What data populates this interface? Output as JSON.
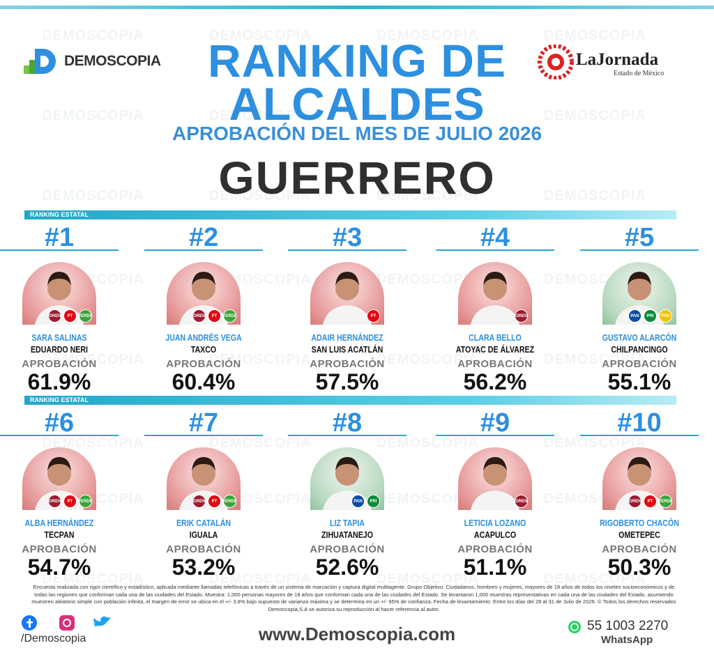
{
  "watermark": "DEMOSCOPIA",
  "header": {
    "brand": "DEMOSCOPIA",
    "title_line1": "RANKING DE",
    "title_line2": "ALCALDES",
    "subtitle": "APROBACIÓN DEL MES DE JULIO 2026",
    "state": "GUERRERO",
    "partner": "LaJornada",
    "partner_sub": "Estado de México"
  },
  "sections": [
    {
      "label": "RANKING ESTATAL",
      "cards": [
        {
          "rank": "#1",
          "name": "SARA SALINAS",
          "city": "EDUARDO NERI",
          "metric": "APROBACIÓN",
          "value": "61.9%",
          "photo": "red",
          "parties": [
            "MORENA",
            "PT",
            "VERDE"
          ]
        },
        {
          "rank": "#2",
          "name": "JUAN ANDRÉS VEGA",
          "city": "TAXCO",
          "metric": "APROBACIÓN",
          "value": "60.4%",
          "photo": "red",
          "parties": [
            "MORENA",
            "PT",
            "VERDE"
          ]
        },
        {
          "rank": "#3",
          "name": "ADAIR HERNÁNDEZ",
          "city": "SAN LUIS ACATLÁN",
          "metric": "APROBACIÓN",
          "value": "57.5%",
          "photo": "red",
          "parties": [
            "PT"
          ]
        },
        {
          "rank": "#4",
          "name": "CLARA BELLO",
          "city": "ATOYAC DE ÁLVAREZ",
          "metric": "APROBACIÓN",
          "value": "56.2%",
          "photo": "red",
          "parties": [
            "MORENA"
          ]
        },
        {
          "rank": "#5",
          "name": "GUSTAVO ALARCÓN",
          "city": "CHILPANCINGO",
          "metric": "APROBACIÓN",
          "value": "55.1%",
          "photo": "green",
          "parties": [
            "PAN",
            "PRI",
            "PRD"
          ]
        }
      ]
    },
    {
      "label": "RANKING ESTATAL",
      "cards": [
        {
          "rank": "#6",
          "name": "ALBA HERNÁNDEZ",
          "city": "TECPAN",
          "metric": "APROBACIÓN",
          "value": "54.7%",
          "photo": "red",
          "parties": [
            "MORENA",
            "PT",
            "VERDE"
          ]
        },
        {
          "rank": "#7",
          "name": "ERIK CATALÁN",
          "city": "IGUALA",
          "metric": "APROBACIÓN",
          "value": "53.2%",
          "photo": "red",
          "parties": [
            "MORENA",
            "PT",
            "VERDE"
          ]
        },
        {
          "rank": "#8",
          "name": "LIZ TAPIA",
          "city": "ZIHUATANEJO",
          "metric": "APROBACIÓN",
          "value": "52.6%",
          "photo": "green",
          "parties": [
            "PAN",
            "PRI"
          ]
        },
        {
          "rank": "#9",
          "name": "LETICIA LOZANO",
          "city": "ACAPULCO",
          "metric": "APROBACIÓN",
          "value": "51.1%",
          "photo": "red",
          "parties": [
            "MORENA"
          ]
        },
        {
          "rank": "#10",
          "name": "RIGOBERTO CHACÓN",
          "city": "OMETEPEC",
          "metric": "APROBACIÓN",
          "value": "50.3%",
          "photo": "red",
          "parties": [
            "MORENA",
            "PT",
            "VERDE"
          ]
        }
      ]
    }
  ],
  "footer": {
    "disclaimer": "Encuesta realizada con rigor científico y estadístico, aplicada mediante llamadas telefónicas a través de un sistema de marcación y captura digital multiagente. Grupo Objetivo: Ciudadanos, hombres y mujeres, mayores de 18 años de todos los niveles socioeconómicos y de todas las regiones que conforman cada una de las ciudades del Estado. Muestra: 1,000 personas mayores de 18 años que conforman cada una de las ciudades del Estado. Se levantaron 1,000 muestras representativas en cada una de las ciudades del Estado, asumiendo muestreo aleatorio simple con población infinita, el margen de error se ubica en el +/- 3.8% bajo supuesto de varianza máxima y se determina en un +/- 95% de confianza. Fecha de levantamiento: Entre los días del 28 al 31 de Julio de 2026. © Todos los derechos reservados Demoscopia,S.A se autoriza su reproducción al hacer referencia al autor.",
    "social_handle": "/Demoscopia",
    "website": "www.Demoscopia.com",
    "phone": "55 1003 2270",
    "phone_label": "WhatsApp"
  }
}
